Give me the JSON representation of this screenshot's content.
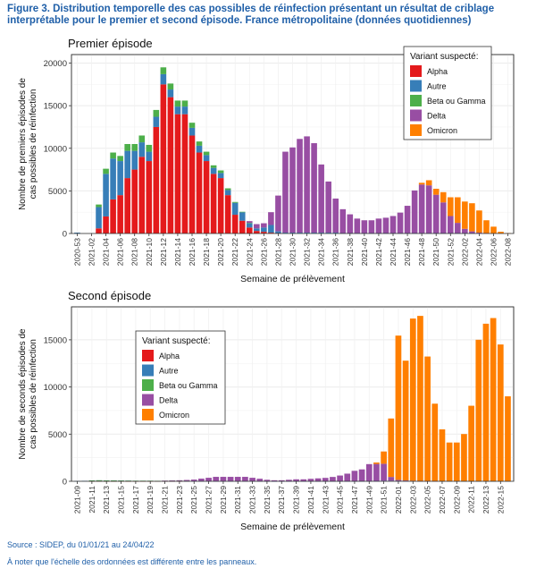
{
  "figure": {
    "title_line1": "Figure 3. Distribution temporelle des cas possibles de réinfection présentant un résultat de criblage",
    "title_line2": "interprétable pour le premier et second épisode. France métropolitaine (données quotidiennes)",
    "source": "Source : SIDEP, du 01/01/21 au 24/04/22",
    "note": "À noter que l'échelle des ordonnées est différente entre les panneaux."
  },
  "colors": {
    "Alpha": "#e41a1c",
    "Autre": "#377eb8",
    "Beta ou Gamma": "#4daf4a",
    "Delta": "#984ea3",
    "Omicron": "#ff7f00",
    "panel_bg": "#ffffff",
    "grid": "#ebebeb",
    "text": "#333333"
  },
  "chart_data": [
    {
      "type": "bar",
      "stacked": true,
      "title": "Premier épisode",
      "xlabel": "Semaine de prélèvement",
      "ylabel_line1": "Nombre de premiers épisodes de",
      "ylabel_line2": "cas possibles de réinfection",
      "ylim": [
        0,
        21000
      ],
      "yticks": [
        0,
        5000,
        10000,
        15000,
        20000
      ],
      "ytick_labels": [
        "0",
        "5000",
        "10000",
        "15000",
        "20000"
      ],
      "xtick_labels": [
        "2020-53",
        "2021-02",
        "2021-04",
        "2021-06",
        "2021-08",
        "2021-10",
        "2021-12",
        "2021-14",
        "2021-16",
        "2021-18",
        "2021-20",
        "2021-22",
        "2021-24",
        "2021-26",
        "2021-28",
        "2021-30",
        "2021-32",
        "2021-34",
        "2021-36",
        "2021-38",
        "2021-40",
        "2021-42",
        "2021-44",
        "2021-46",
        "2021-48",
        "2021-50",
        "2021-52",
        "2022-02",
        "2022-04",
        "2022-06",
        "2022-08"
      ],
      "legend_title": "Variant suspecté:",
      "legend_position": "top-right",
      "grid": true,
      "categories": [
        "2020-53",
        "2021-01",
        "2021-02",
        "2021-03",
        "2021-04",
        "2021-05",
        "2021-06",
        "2021-07",
        "2021-08",
        "2021-09",
        "2021-10",
        "2021-11",
        "2021-12",
        "2021-13",
        "2021-14",
        "2021-15",
        "2021-16",
        "2021-17",
        "2021-18",
        "2021-19",
        "2021-20",
        "2021-21",
        "2021-22",
        "2021-23",
        "2021-24",
        "2021-25",
        "2021-26",
        "2021-27",
        "2021-28",
        "2021-29",
        "2021-30",
        "2021-31",
        "2021-32",
        "2021-33",
        "2021-34",
        "2021-35",
        "2021-36",
        "2021-37",
        "2021-38",
        "2021-39",
        "2021-40",
        "2021-41",
        "2021-42",
        "2021-43",
        "2021-44",
        "2021-45",
        "2021-46",
        "2021-47",
        "2021-48",
        "2021-49",
        "2021-50",
        "2021-51",
        "2021-52",
        "2022-01",
        "2022-02",
        "2022-03",
        "2022-04",
        "2022-05",
        "2022-06",
        "2022-07",
        "2022-08"
      ],
      "series": [
        {
          "name": "Alpha",
          "values": [
            0,
            0,
            0,
            600,
            2000,
            4000,
            4500,
            6500,
            7500,
            9000,
            8500,
            12500,
            17500,
            16000,
            14000,
            14000,
            11500,
            9500,
            8500,
            7000,
            6500,
            4500,
            2200,
            1500,
            700,
            300,
            200,
            100,
            50,
            0,
            0,
            0,
            0,
            0,
            0,
            0,
            0,
            0,
            0,
            0,
            0,
            0,
            0,
            0,
            0,
            0,
            0,
            0,
            0,
            0,
            0,
            0,
            0,
            0,
            0,
            0,
            0,
            0,
            0,
            0,
            0
          ]
        },
        {
          "name": "Autre",
          "values": [
            100,
            0,
            0,
            2500,
            5000,
            4800,
            4000,
            3200,
            2200,
            1700,
            1100,
            1200,
            1200,
            900,
            900,
            900,
            900,
            800,
            700,
            700,
            600,
            600,
            1400,
            1000,
            500,
            300,
            500,
            900,
            200,
            100,
            100,
            100,
            100,
            100,
            100,
            100,
            100,
            50,
            50,
            50,
            50,
            50,
            50,
            50,
            50,
            50,
            50,
            50,
            50,
            50,
            50,
            50,
            50,
            50,
            50,
            50,
            0,
            0,
            0,
            0,
            0
          ]
        },
        {
          "name": "Beta ou Gamma",
          "values": [
            0,
            0,
            0,
            300,
            600,
            700,
            600,
            800,
            800,
            800,
            800,
            800,
            800,
            700,
            700,
            700,
            600,
            500,
            400,
            300,
            300,
            200,
            100,
            50,
            50,
            0,
            0,
            0,
            0,
            0,
            0,
            0,
            0,
            0,
            0,
            0,
            0,
            0,
            0,
            0,
            0,
            0,
            0,
            0,
            0,
            0,
            0,
            0,
            0,
            0,
            0,
            0,
            0,
            0,
            0,
            0,
            0,
            0,
            0,
            0,
            0
          ]
        },
        {
          "name": "Delta",
          "values": [
            0,
            0,
            0,
            0,
            0,
            0,
            0,
            0,
            0,
            0,
            0,
            0,
            0,
            0,
            0,
            0,
            0,
            0,
            0,
            0,
            0,
            0,
            0,
            0,
            200,
            500,
            500,
            1500,
            4200,
            9500,
            10000,
            11000,
            11300,
            10500,
            8000,
            6000,
            4000,
            2800,
            2200,
            1700,
            1500,
            1500,
            1700,
            1800,
            2000,
            2400,
            3200,
            5000,
            5700,
            5600,
            4500,
            3600,
            2000,
            1200,
            500,
            200,
            100,
            50,
            0,
            0,
            0
          ]
        },
        {
          "name": "Omicron",
          "values": [
            0,
            0,
            0,
            0,
            0,
            0,
            0,
            0,
            0,
            0,
            0,
            0,
            0,
            0,
            0,
            0,
            0,
            0,
            0,
            0,
            0,
            0,
            0,
            0,
            0,
            0,
            0,
            0,
            0,
            0,
            0,
            0,
            0,
            0,
            0,
            0,
            0,
            0,
            0,
            0,
            0,
            0,
            0,
            0,
            0,
            0,
            0,
            0,
            200,
            600,
            700,
            1200,
            2200,
            3000,
            3200,
            3300,
            2600,
            1500,
            800,
            200,
            50
          ]
        }
      ]
    },
    {
      "type": "bar",
      "stacked": true,
      "title": "Second épisode",
      "xlabel": "Semaine de prélèvement",
      "ylabel_line1": "Nombre de seconds épisodes de",
      "ylabel_line2": "cas possibles de réinfection",
      "ylim": [
        0,
        18500
      ],
      "yticks": [
        0,
        5000,
        10000,
        15000
      ],
      "ytick_labels": [
        "0",
        "5000",
        "10000",
        "15000"
      ],
      "xtick_labels": [
        "2021-09",
        "2021-11",
        "2021-13",
        "2021-15",
        "2021-17",
        "2021-19",
        "2021-21",
        "2021-23",
        "2021-25",
        "2021-27",
        "2021-29",
        "2021-31",
        "2021-33",
        "2021-35",
        "2021-37",
        "2021-39",
        "2021-41",
        "2021-43",
        "2021-45",
        "2021-47",
        "2021-49",
        "2021-51",
        "2022-01",
        "2022-03",
        "2022-05",
        "2022-07",
        "2022-09",
        "2022-11",
        "2022-13",
        "2022-15"
      ],
      "legend_title": "Variant suspecté:",
      "legend_position": "left",
      "grid": true,
      "categories": [
        "2021-09",
        "2021-10",
        "2021-11",
        "2021-12",
        "2021-13",
        "2021-14",
        "2021-15",
        "2021-16",
        "2021-17",
        "2021-18",
        "2021-19",
        "2021-20",
        "2021-21",
        "2021-22",
        "2021-23",
        "2021-24",
        "2021-25",
        "2021-26",
        "2021-27",
        "2021-28",
        "2021-29",
        "2021-30",
        "2021-31",
        "2021-32",
        "2021-33",
        "2021-34",
        "2021-35",
        "2021-36",
        "2021-37",
        "2021-38",
        "2021-39",
        "2021-40",
        "2021-41",
        "2021-42",
        "2021-43",
        "2021-44",
        "2021-45",
        "2021-46",
        "2021-47",
        "2021-48",
        "2021-49",
        "2021-50",
        "2021-51",
        "2021-52",
        "2022-01",
        "2022-02",
        "2022-03",
        "2022-04",
        "2022-05",
        "2022-06",
        "2022-07",
        "2022-08",
        "2022-09",
        "2022-10",
        "2022-11",
        "2022-12",
        "2022-13",
        "2022-14",
        "2022-15",
        "2022-16"
      ],
      "series": [
        {
          "name": "Alpha",
          "values": [
            0,
            0,
            20,
            30,
            20,
            20,
            20,
            10,
            10,
            10,
            10,
            10,
            10,
            10,
            10,
            0,
            0,
            0,
            0,
            0,
            0,
            0,
            0,
            0,
            0,
            0,
            0,
            0,
            0,
            0,
            0,
            0,
            0,
            0,
            0,
            0,
            0,
            0,
            0,
            0,
            0,
            0,
            0,
            0,
            0,
            0,
            0,
            0,
            0,
            0,
            0,
            0,
            0,
            0,
            0,
            0,
            0,
            0,
            0,
            0
          ]
        },
        {
          "name": "Autre",
          "values": [
            30,
            50,
            60,
            70,
            60,
            60,
            50,
            50,
            40,
            40,
            40,
            30,
            30,
            30,
            30,
            30,
            30,
            30,
            20,
            20,
            20,
            20,
            20,
            20,
            20,
            20,
            10,
            10,
            10,
            10,
            10,
            10,
            10,
            10,
            10,
            10,
            10,
            10,
            10,
            10,
            20,
            40,
            60,
            60,
            50,
            40,
            30,
            20,
            20,
            20,
            10,
            10,
            10,
            10,
            10,
            10,
            10,
            10,
            10,
            10
          ]
        },
        {
          "name": "Beta ou Gamma",
          "values": [
            0,
            0,
            10,
            10,
            10,
            10,
            10,
            10,
            10,
            10,
            10,
            10,
            10,
            10,
            10,
            10,
            0,
            0,
            0,
            0,
            0,
            0,
            0,
            0,
            0,
            0,
            0,
            0,
            0,
            0,
            0,
            0,
            0,
            0,
            0,
            0,
            0,
            0,
            0,
            0,
            0,
            0,
            0,
            0,
            0,
            0,
            0,
            0,
            0,
            0,
            0,
            0,
            0,
            0,
            0,
            0,
            0,
            0,
            0,
            0
          ]
        },
        {
          "name": "Delta",
          "values": [
            0,
            0,
            0,
            0,
            0,
            0,
            0,
            0,
            0,
            0,
            0,
            0,
            20,
            40,
            60,
            100,
            150,
            250,
            350,
            450,
            450,
            450,
            450,
            450,
            350,
            250,
            150,
            100,
            100,
            150,
            200,
            200,
            250,
            300,
            350,
            450,
            600,
            800,
            1100,
            1250,
            1800,
            1800,
            1800,
            400,
            100,
            50,
            30,
            20,
            10,
            10,
            0,
            0,
            0,
            0,
            0,
            0,
            0,
            0,
            0,
            0
          ]
        },
        {
          "name": "Omicron",
          "values": [
            0,
            0,
            0,
            0,
            0,
            0,
            0,
            0,
            0,
            0,
            0,
            0,
            0,
            0,
            0,
            0,
            0,
            0,
            0,
            0,
            0,
            0,
            0,
            0,
            0,
            0,
            0,
            0,
            0,
            0,
            0,
            0,
            0,
            0,
            0,
            0,
            0,
            0,
            0,
            0,
            0,
            150,
            1300,
            6200,
            15300,
            12700,
            17200,
            17500,
            13200,
            8200,
            5500,
            4100,
            4100,
            5000,
            8000,
            15000,
            16700,
            17300,
            14500,
            9000
          ]
        }
      ]
    }
  ]
}
